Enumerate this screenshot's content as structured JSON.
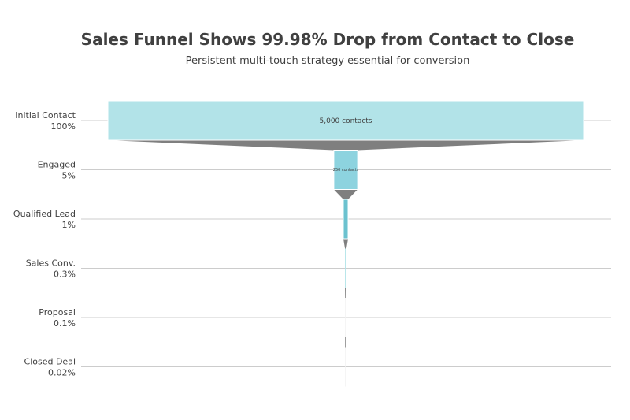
{
  "chart_data": {
    "type": "funnel",
    "title": "Sales Funnel Shows 99.98% Drop from Contact to Close",
    "subtitle": "Persistent multi-touch strategy essential for conversion",
    "stages": [
      {
        "name": "Initial Contact",
        "percent_label": "100%",
        "value": 5000,
        "value_label": "5,000 contacts",
        "color": "#b2e3e8"
      },
      {
        "name": "Engaged",
        "percent_label": "5%",
        "value": 250,
        "value_label": "250 contacts",
        "color": "#8dd3df"
      },
      {
        "name": "Qualified Lead",
        "percent_label": "1%",
        "value": 50,
        "value_label": "",
        "color": "#6cc2cf"
      },
      {
        "name": "Sales Conv.",
        "percent_label": "0.3%",
        "value": 15,
        "value_label": "",
        "color": "#b2e3e8"
      },
      {
        "name": "Proposal",
        "percent_label": "0.1%",
        "value": 5,
        "value_label": "",
        "color": "#f2f2f2"
      },
      {
        "name": "Closed Deal",
        "percent_label": "0.02%",
        "value": 1,
        "value_label": "",
        "color": "#f2f2f2"
      }
    ],
    "connector_color": "#7f7f7f",
    "gridline_color": "#cccccc"
  }
}
